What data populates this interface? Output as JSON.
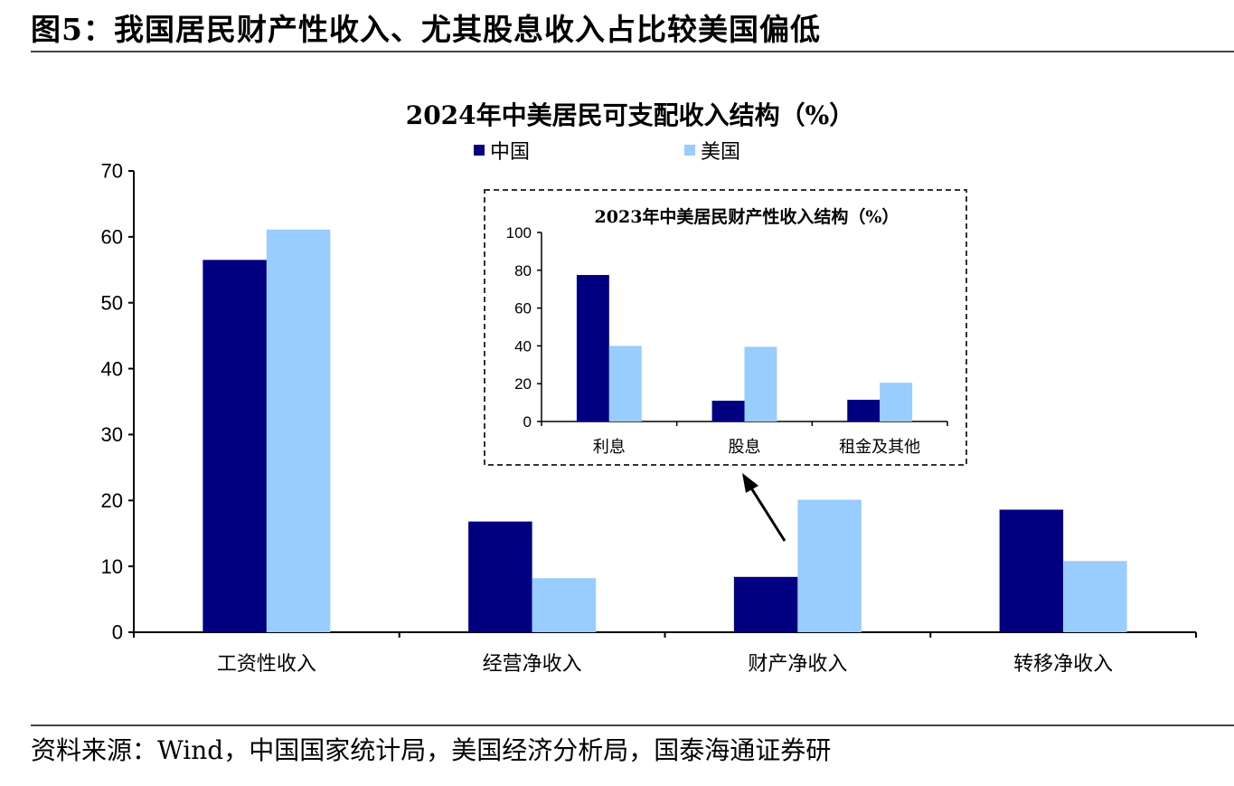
{
  "figure": {
    "title": "图5：我国居民财产性收入、尤其股息收入占比较美国偏低",
    "source": "资料来源：Wind，中国国家统计局，美国经济分析局，国泰海通证券研"
  },
  "colors": {
    "china": "#000080",
    "usa": "#99ccff",
    "axis": "#000000",
    "inset_border": "#333333"
  },
  "chart_data": [
    {
      "type": "bar",
      "title": "2024年中美居民可支配收入结构（%）",
      "categories": [
        "工资性收入",
        "经营净收入",
        "财产净收入",
        "转移净收入"
      ],
      "series": [
        {
          "name": "中国",
          "values": [
            56.5,
            16.8,
            8.4,
            18.6
          ]
        },
        {
          "name": "美国",
          "values": [
            61.1,
            8.2,
            20.1,
            10.8
          ]
        }
      ],
      "ylim": [
        0,
        70
      ],
      "yticks": [
        0,
        10,
        20,
        30,
        40,
        50,
        60,
        70
      ],
      "legend": "top-center"
    },
    {
      "type": "bar",
      "title": "2023年中美居民财产性收入结构（%）",
      "categories": [
        "利息",
        "股息",
        "租金及其他"
      ],
      "series": [
        {
          "name": "中国",
          "values": [
            77.5,
            11,
            11.5
          ]
        },
        {
          "name": "美国",
          "values": [
            40,
            39.5,
            20.5
          ]
        }
      ],
      "ylim": [
        0,
        100
      ],
      "yticks": [
        0,
        20,
        40,
        60,
        80,
        100
      ]
    }
  ]
}
